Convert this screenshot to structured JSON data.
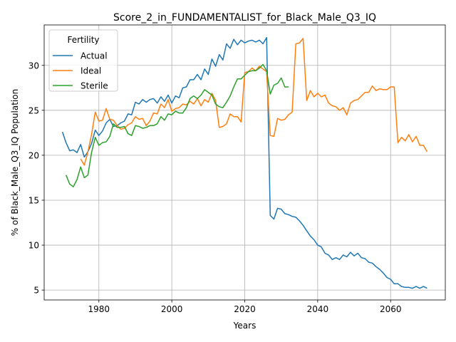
{
  "chart_data": {
    "type": "line",
    "title": "Score_2_in_FUNDAMENTALIST_for_Black_Male_Q3_IQ",
    "xlabel": "Years",
    "ylabel": "% of Black_Male_Q3_IQ Population",
    "xlim": [
      1965,
      2075
    ],
    "ylim": [
      3.9,
      34.5
    ],
    "xticks": [
      1980,
      2000,
      2020,
      2040,
      2060
    ],
    "yticks": [
      5,
      10,
      15,
      20,
      25,
      30
    ],
    "grid": true,
    "legend": {
      "title": "Fertility",
      "placement": "top-left"
    },
    "series": [
      {
        "name": "Actual",
        "color": "#1f77b4",
        "x": [
          1970,
          1971,
          1972,
          1973,
          1974,
          1975,
          1976,
          1977,
          1978,
          1979,
          1980,
          1981,
          1982,
          1983,
          1984,
          1985,
          1986,
          1987,
          1988,
          1989,
          1990,
          1991,
          1992,
          1993,
          1994,
          1995,
          1996,
          1997,
          1998,
          1999,
          2000,
          2001,
          2002,
          2003,
          2004,
          2005,
          2006,
          2007,
          2008,
          2009,
          2010,
          2011,
          2012,
          2013,
          2014,
          2015,
          2016,
          2017,
          2018,
          2019,
          2020,
          2021,
          2022,
          2023,
          2024,
          2025,
          2026,
          2027,
          2028,
          2029,
          2030,
          2031,
          2032,
          2033,
          2034,
          2035,
          2036,
          2037,
          2038,
          2039,
          2040,
          2041,
          2042,
          2043,
          2044,
          2045,
          2046,
          2047,
          2048,
          2049,
          2050,
          2051,
          2052,
          2053,
          2054,
          2055,
          2056,
          2057,
          2058,
          2059,
          2060,
          2061,
          2062,
          2063,
          2064,
          2065,
          2066,
          2067,
          2068,
          2069,
          2070
        ],
        "values": [
          22.6,
          21.4,
          20.5,
          20.6,
          20.3,
          21.2,
          19.8,
          20.4,
          21.3,
          22.8,
          22.2,
          22.7,
          23.6,
          24.0,
          23.2,
          23.3,
          23.6,
          23.8,
          24.6,
          24.5,
          25.9,
          25.7,
          26.2,
          25.9,
          26.2,
          26.3,
          25.8,
          26.5,
          26.0,
          26.7,
          25.8,
          26.6,
          26.4,
          27.5,
          27.6,
          28.4,
          28.4,
          29.0,
          28.4,
          29.6,
          29.0,
          30.7,
          29.9,
          31.2,
          30.6,
          32.4,
          31.9,
          32.9,
          32.3,
          32.8,
          32.5,
          32.7,
          32.8,
          32.6,
          32.8,
          32.4,
          33.1,
          13.3,
          12.9,
          14.1,
          14.0,
          13.5,
          13.4,
          13.2,
          13.1,
          12.7,
          12.2,
          11.6,
          11.0,
          10.6,
          10.0,
          9.8,
          9.1,
          8.9,
          8.4,
          8.6,
          8.4,
          8.9,
          8.7,
          9.2,
          8.8,
          9.1,
          8.6,
          8.5,
          8.1,
          8.0,
          7.6,
          7.3,
          6.9,
          6.4,
          6.2,
          5.7,
          5.7,
          5.4,
          5.3,
          5.3,
          5.2,
          5.4,
          5.2,
          5.4,
          5.2
        ]
      },
      {
        "name": "Ideal",
        "color": "#ff7f0e",
        "x": [
          1975,
          1976,
          1977,
          1978,
          1979,
          1980,
          1981,
          1982,
          1983,
          1984,
          1985,
          1986,
          1987,
          1988,
          1989,
          1990,
          1991,
          1992,
          1993,
          1994,
          1995,
          1996,
          1997,
          1998,
          1999,
          2000,
          2001,
          2002,
          2003,
          2004,
          2005,
          2006,
          2007,
          2008,
          2009,
          2010,
          2011,
          2012,
          2013,
          2014,
          2015,
          2016,
          2017,
          2018,
          2019,
          2020,
          2021,
          2022,
          2023,
          2024,
          2025,
          2026,
          2027,
          2028,
          2029,
          2030,
          2031,
          2032,
          2033,
          2034,
          2035,
          2036,
          2037,
          2038,
          2039,
          2040,
          2041,
          2042,
          2043,
          2044,
          2045,
          2046,
          2047,
          2048,
          2049,
          2050,
          2051,
          2052,
          2053,
          2054,
          2055,
          2056,
          2057,
          2058,
          2059,
          2060,
          2061,
          2062,
          2063,
          2064,
          2065,
          2066,
          2067,
          2068,
          2069,
          2070
        ],
        "values": [
          19.6,
          18.9,
          20.4,
          22.3,
          24.8,
          23.8,
          23.9,
          25.2,
          24.0,
          23.9,
          23.3,
          22.9,
          23.0,
          23.4,
          23.6,
          24.3,
          24.0,
          24.1,
          23.3,
          23.8,
          24.7,
          24.6,
          25.7,
          25.3,
          26.2,
          24.9,
          25.2,
          25.3,
          25.7,
          25.6,
          26.0,
          25.7,
          26.3,
          25.5,
          26.2,
          25.9,
          26.9,
          26.1,
          23.1,
          23.2,
          23.5,
          24.6,
          24.3,
          24.3,
          23.7,
          29.2,
          29.3,
          29.7,
          29.4,
          29.9,
          29.6,
          29.3,
          22.2,
          22.1,
          24.1,
          23.9,
          24.0,
          24.5,
          24.8,
          32.4,
          32.5,
          33.0,
          26.1,
          27.2,
          26.5,
          26.9,
          26.5,
          26.7,
          25.8,
          25.5,
          25.4,
          25.0,
          25.3,
          24.5,
          25.8,
          26.1,
          26.2,
          26.6,
          27.0,
          27.0,
          27.7,
          27.2,
          27.4,
          27.3,
          27.3,
          27.6,
          27.6,
          21.4,
          22.0,
          21.6,
          22.3,
          21.5,
          22.1,
          21.1,
          21.1,
          20.4
        ]
      },
      {
        "name": "Sterile",
        "color": "#2ca02c",
        "x": [
          1971,
          1972,
          1973,
          1974,
          1975,
          1976,
          1977,
          1978,
          1979,
          1980,
          1981,
          1982,
          1983,
          1984,
          1985,
          1986,
          1987,
          1988,
          1989,
          1990,
          1991,
          1992,
          1993,
          1994,
          1995,
          1996,
          1997,
          1998,
          1999,
          2000,
          2001,
          2002,
          2003,
          2004,
          2005,
          2006,
          2007,
          2008,
          2009,
          2010,
          2011,
          2012,
          2013,
          2014,
          2015,
          2016,
          2017,
          2018,
          2019,
          2020,
          2021,
          2022,
          2023,
          2024,
          2025,
          2026,
          2027,
          2028,
          2029,
          2030,
          2031,
          2032
        ],
        "values": [
          17.8,
          16.8,
          16.5,
          17.3,
          18.7,
          17.5,
          17.8,
          20.3,
          22.0,
          21.1,
          21.4,
          21.5,
          22.1,
          23.5,
          23.1,
          23.1,
          23.2,
          22.4,
          22.2,
          23.3,
          23.2,
          23.0,
          23.1,
          23.3,
          23.3,
          23.5,
          24.3,
          23.9,
          24.6,
          24.5,
          24.9,
          24.7,
          24.7,
          25.3,
          26.3,
          26.6,
          26.3,
          26.7,
          27.3,
          27.0,
          26.7,
          25.7,
          25.4,
          25.3,
          25.9,
          26.6,
          27.6,
          28.5,
          28.5,
          28.9,
          29.3,
          29.4,
          29.4,
          29.7,
          30.1,
          29.4,
          26.8,
          27.8,
          28.0,
          28.6,
          27.6,
          27.6
        ]
      }
    ]
  }
}
